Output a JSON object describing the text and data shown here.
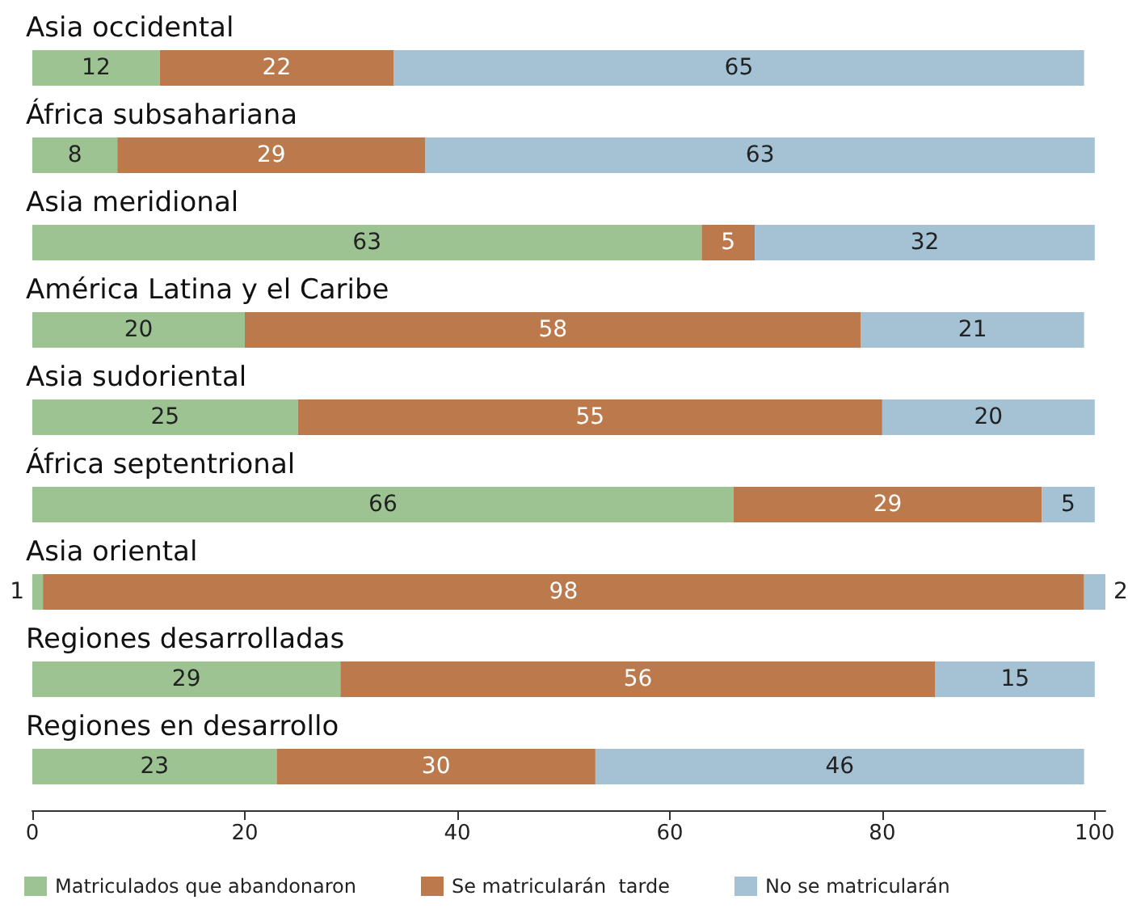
{
  "chart_data": {
    "type": "bar",
    "orientation": "horizontal",
    "stacked": true,
    "categories": [
      "Asia occidental",
      "África subsahariana",
      "Asia meridional",
      "América Latina y el Caribe",
      "Asia sudoriental",
      "África septentrional",
      "Asia oriental",
      "Regiones desarrolladas",
      "Regiones en desarrollo"
    ],
    "series": [
      {
        "name": "Matriculados que abandonaron",
        "color": "#9dc393",
        "values": [
          12,
          8,
          63,
          20,
          25,
          66,
          1,
          29,
          23
        ]
      },
      {
        "name": "Se matricularán  tarde",
        "color": "#bc7a4c",
        "values": [
          22,
          29,
          5,
          58,
          55,
          29,
          98,
          56,
          30
        ]
      },
      {
        "name": "No se matricularán",
        "color": "#a4c2d4",
        "values": [
          65,
          63,
          32,
          21,
          20,
          5,
          2,
          15,
          46
        ]
      }
    ],
    "xlim": [
      0,
      101
    ],
    "xticks": [
      0,
      20,
      40,
      60,
      80,
      100
    ],
    "data_labels": true,
    "grid": false,
    "legend": "bottom"
  }
}
